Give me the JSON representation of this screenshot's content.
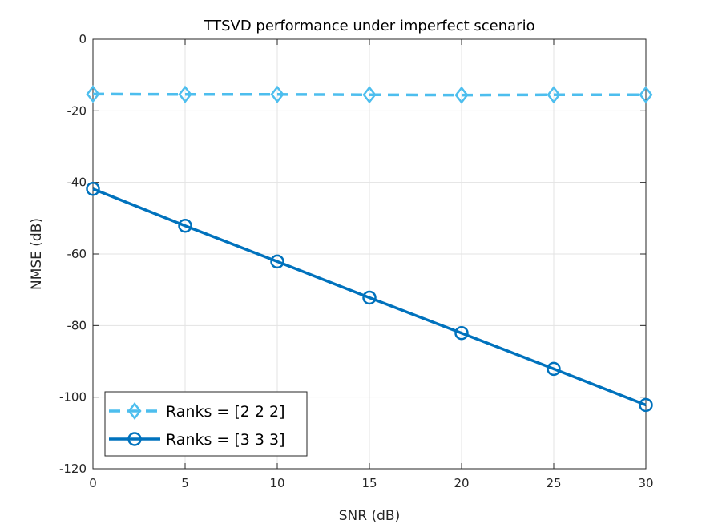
{
  "chart_data": {
    "type": "line",
    "title": "TTSVD performance under imperfect scenario",
    "xlabel": "SNR (dB)",
    "ylabel": "NMSE (dB)",
    "xlim": [
      0,
      30
    ],
    "ylim": [
      -120,
      0
    ],
    "xticks": [
      0,
      5,
      10,
      15,
      20,
      25,
      30
    ],
    "yticks": [
      0,
      -20,
      -40,
      -60,
      -80,
      -100,
      -120
    ],
    "grid": true,
    "legend_position": "bottom-left",
    "x": [
      0,
      5,
      10,
      15,
      20,
      25,
      30
    ],
    "series": [
      {
        "name": "Ranks = [2 2 2]",
        "values": [
          -15.3,
          -15.4,
          -15.4,
          -15.5,
          -15.6,
          -15.5,
          -15.5
        ],
        "color": "#4DBEEE",
        "line_style": "dashed",
        "marker": "diamond"
      },
      {
        "name": "Ranks = [3 3 3]",
        "values": [
          -41.8,
          -52.1,
          -62.1,
          -72.2,
          -82.1,
          -92.1,
          -102.2
        ],
        "color": "#0072BD",
        "line_style": "solid",
        "marker": "circle"
      }
    ]
  }
}
